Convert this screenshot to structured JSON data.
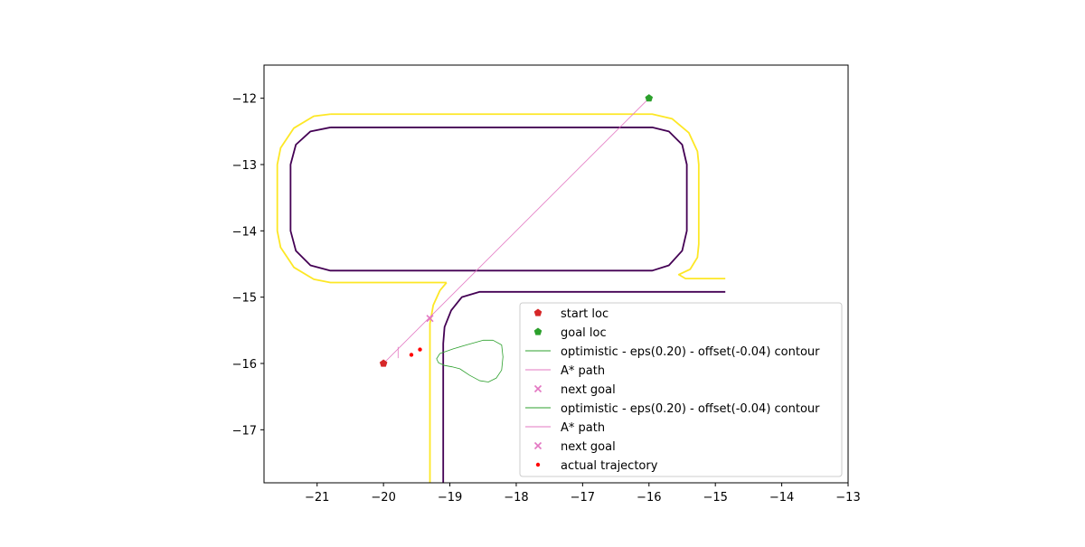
{
  "chart_data": {
    "type": "line",
    "title": "",
    "xlabel": "",
    "ylabel": "",
    "xlim": [
      -21.8,
      -13.0
    ],
    "ylim": [
      -17.8,
      -11.5
    ],
    "xticks": [
      -21,
      -20,
      -19,
      -18,
      -17,
      -16,
      -15,
      -14,
      -13
    ],
    "yticks": [
      -17,
      -16,
      -15,
      -14,
      -13,
      -12
    ],
    "xtick_labels": [
      "−21",
      "−20",
      "−19",
      "−18",
      "−17",
      "−16",
      "−15",
      "−14",
      "−13"
    ],
    "ytick_labels": [
      "−17",
      "−16",
      "−15",
      "−14",
      "−13",
      "−12"
    ],
    "grid": false,
    "legend_position": "lower-right",
    "colors": {
      "track_outer": "#fde725",
      "track_inner": "#440154",
      "start": "#d62728",
      "goal": "#2ca02c",
      "contour": "#2ca02c",
      "astar": "#e377c2",
      "next_goal": "#e377c2",
      "trajectory": "#ff0000"
    },
    "series": [
      {
        "kind": "track_outer",
        "points": [
          [
            -20.8,
            -12.24
          ],
          [
            -15.95,
            -12.24
          ],
          [
            -15.65,
            -12.31
          ],
          [
            -15.4,
            -12.52
          ],
          [
            -15.27,
            -12.8
          ],
          [
            -15.25,
            -13.0
          ],
          [
            -15.25,
            -14.2
          ],
          [
            -15.27,
            -14.4
          ],
          [
            -15.38,
            -14.58
          ],
          [
            -15.55,
            -14.66
          ],
          [
            -15.45,
            -14.72
          ],
          [
            -14.85,
            -14.72
          ]
        ]
      },
      {
        "kind": "track_outer",
        "points": [
          [
            -19.05,
            -14.78
          ],
          [
            -20.8,
            -14.78
          ],
          [
            -21.05,
            -14.73
          ],
          [
            -21.35,
            -14.55
          ],
          [
            -21.55,
            -14.25
          ],
          [
            -21.6,
            -14.0
          ],
          [
            -21.6,
            -13.0
          ],
          [
            -21.55,
            -12.75
          ],
          [
            -21.35,
            -12.45
          ],
          [
            -21.05,
            -12.27
          ],
          [
            -20.8,
            -12.24
          ]
        ]
      },
      {
        "kind": "track_outer",
        "points": [
          [
            -19.05,
            -14.78
          ],
          [
            -19.15,
            -14.9
          ],
          [
            -19.25,
            -15.12
          ],
          [
            -19.3,
            -15.4
          ],
          [
            -19.3,
            -17.8
          ]
        ]
      },
      {
        "kind": "track_inner",
        "points": [
          [
            -20.8,
            -12.44
          ],
          [
            -15.95,
            -12.44
          ],
          [
            -15.7,
            -12.5
          ],
          [
            -15.5,
            -12.7
          ],
          [
            -15.43,
            -13.0
          ],
          [
            -15.43,
            -14.0
          ],
          [
            -15.5,
            -14.3
          ],
          [
            -15.7,
            -14.52
          ],
          [
            -15.95,
            -14.6
          ],
          [
            -20.8,
            -14.6
          ],
          [
            -21.1,
            -14.52
          ],
          [
            -21.32,
            -14.3
          ],
          [
            -21.4,
            -14.0
          ],
          [
            -21.4,
            -13.0
          ],
          [
            -21.32,
            -12.7
          ],
          [
            -21.1,
            -12.5
          ],
          [
            -20.8,
            -12.44
          ]
        ]
      },
      {
        "kind": "track_inner",
        "points": [
          [
            -14.85,
            -14.92
          ],
          [
            -18.55,
            -14.92
          ],
          [
            -18.82,
            -15.0
          ],
          [
            -18.98,
            -15.2
          ],
          [
            -19.08,
            -15.45
          ],
          [
            -19.1,
            -15.7
          ],
          [
            -19.1,
            -17.8
          ]
        ]
      },
      {
        "kind": "astar",
        "points": [
          [
            -20.0,
            -16.0
          ],
          [
            -16.0,
            -12.0
          ]
        ]
      },
      {
        "kind": "astar",
        "points": [
          [
            -19.78,
            -15.92
          ],
          [
            -19.78,
            -15.75
          ]
        ]
      },
      {
        "kind": "contour",
        "points": [
          [
            -19.15,
            -15.85
          ],
          [
            -18.95,
            -15.78
          ],
          [
            -18.75,
            -15.72
          ],
          [
            -18.5,
            -15.65
          ],
          [
            -18.35,
            -15.65
          ],
          [
            -18.22,
            -15.72
          ],
          [
            -18.2,
            -15.9
          ],
          [
            -18.22,
            -16.1
          ],
          [
            -18.3,
            -16.22
          ],
          [
            -18.42,
            -16.28
          ],
          [
            -18.55,
            -16.26
          ],
          [
            -18.7,
            -16.18
          ],
          [
            -18.85,
            -16.08
          ],
          [
            -18.97,
            -16.05
          ],
          [
            -19.08,
            -16.03
          ],
          [
            -19.17,
            -15.99
          ],
          [
            -19.2,
            -15.93
          ],
          [
            -19.15,
            -15.85
          ]
        ]
      }
    ],
    "markers": {
      "start": [
        [
          -20.0,
          -16.0
        ]
      ],
      "goal": [
        [
          -16.0,
          -12.0
        ]
      ],
      "next_goal": [
        [
          -19.3,
          -15.32
        ]
      ],
      "trajectory": [
        [
          -19.58,
          -15.87
        ],
        [
          -19.45,
          -15.79
        ]
      ]
    },
    "legend": [
      {
        "label": "start loc",
        "symbol": "pentagon",
        "color": "#d62728"
      },
      {
        "label": "goal loc",
        "symbol": "pentagon",
        "color": "#2ca02c"
      },
      {
        "label": "optimistic - eps(0.20) - offset(-0.04) contour",
        "symbol": "line",
        "color": "#2ca02c"
      },
      {
        "label": "A* path",
        "symbol": "line",
        "color": "#e377c2"
      },
      {
        "label": "next goal",
        "symbol": "x",
        "color": "#e377c2"
      },
      {
        "label": "optimistic - eps(0.20) - offset(-0.04) contour",
        "symbol": "line",
        "color": "#2ca02c"
      },
      {
        "label": "A* path",
        "symbol": "line",
        "color": "#e377c2"
      },
      {
        "label": "next goal",
        "symbol": "x",
        "color": "#e377c2"
      },
      {
        "label": "actual trajectory",
        "symbol": "dot",
        "color": "#ff0000"
      }
    ]
  }
}
